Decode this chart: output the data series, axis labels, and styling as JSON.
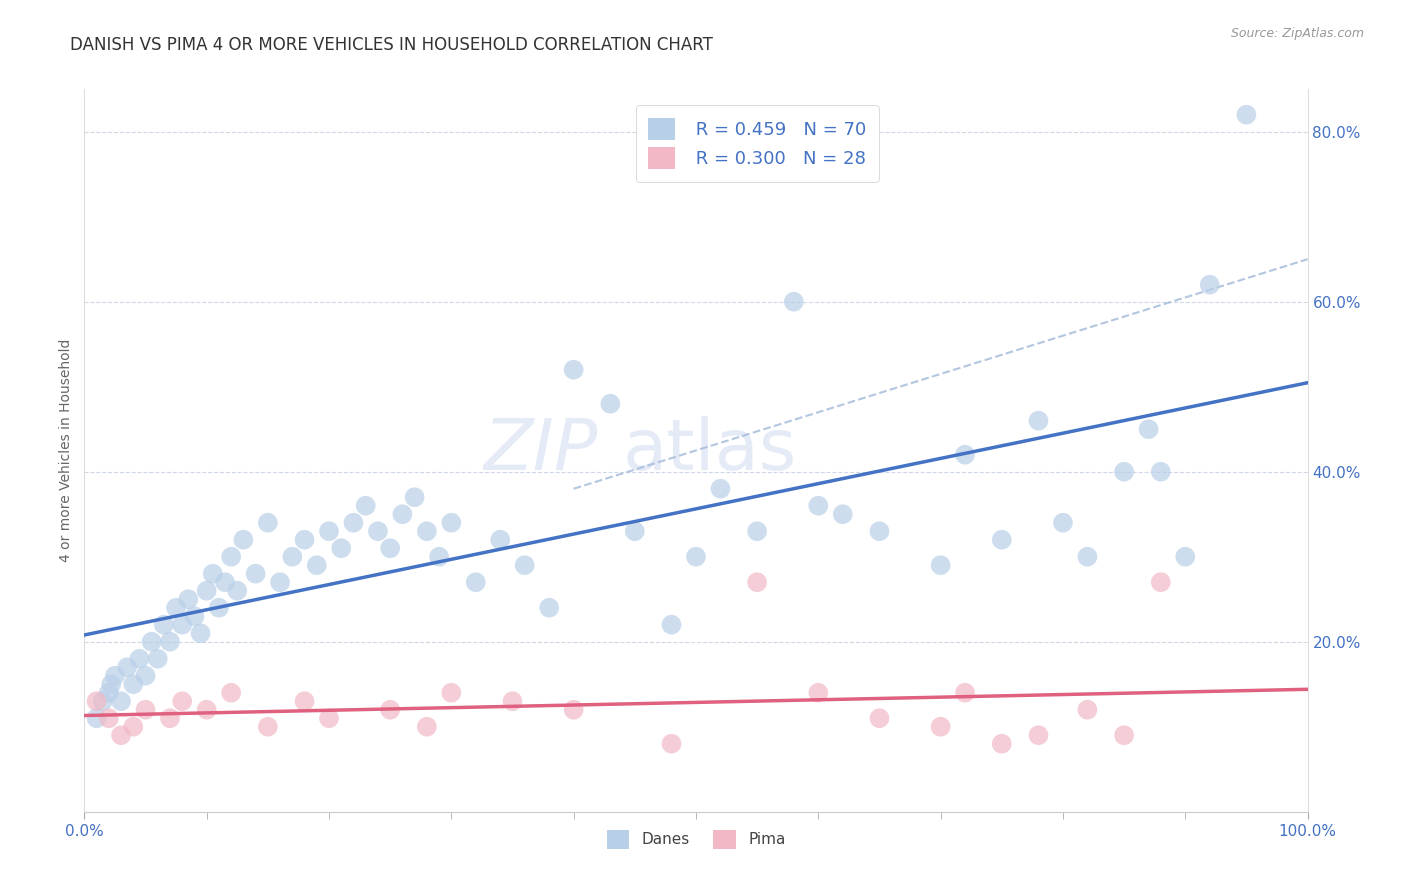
{
  "title": "DANISH VS PIMA 4 OR MORE VEHICLES IN HOUSEHOLD CORRELATION CHART",
  "source": "Source: ZipAtlas.com",
  "ylabel": "4 or more Vehicles in Household",
  "legend_danes": "Danes",
  "legend_pima": "Pima",
  "danes_R": "0.459",
  "danes_N": "70",
  "pima_R": "0.300",
  "pima_N": "28",
  "danes_scatter_color": "#b8cfe8",
  "pima_scatter_color": "#f2b8c6",
  "danes_line_color": "#4472c4",
  "pima_line_color": "#e06080",
  "dashed_line_color": "#a0b8d8",
  "tick_label_color": "#4472c4",
  "background_color": "#ffffff",
  "grid_color": "#d0d8e8",
  "watermark_color": "#ccd8ee",
  "xlim": [
    0,
    100
  ],
  "ylim": [
    0,
    85
  ],
  "yticks": [
    20,
    40,
    60,
    80
  ],
  "ytick_labels": [
    "20.0%",
    "40.0%",
    "60.0%",
    "80.0%"
  ],
  "title_fontsize": 12,
  "axis_label_fontsize": 10,
  "tick_fontsize": 11,
  "danes_x": [
    1.0,
    1.5,
    2.0,
    2.2,
    2.5,
    3.0,
    3.5,
    4.0,
    4.5,
    5.0,
    5.5,
    6.0,
    6.5,
    7.0,
    7.5,
    8.0,
    8.5,
    9.0,
    9.5,
    10.0,
    10.5,
    11.0,
    11.5,
    12.0,
    12.5,
    13.0,
    14.0,
    15.0,
    16.0,
    17.0,
    18.0,
    19.0,
    20.0,
    21.0,
    22.0,
    23.0,
    24.0,
    25.0,
    26.0,
    27.0,
    28.0,
    29.0,
    30.0,
    32.0,
    34.0,
    36.0,
    38.0,
    40.0,
    43.0,
    45.0,
    48.0,
    50.0,
    52.0,
    55.0,
    58.0,
    60.0,
    62.0,
    65.0,
    70.0,
    72.0,
    75.0,
    78.0,
    80.0,
    82.0,
    85.0,
    87.0,
    88.0,
    90.0,
    92.0,
    95.0
  ],
  "danes_y": [
    11.0,
    13.0,
    14.0,
    15.0,
    16.0,
    13.0,
    17.0,
    15.0,
    18.0,
    16.0,
    20.0,
    18.0,
    22.0,
    20.0,
    24.0,
    22.0,
    25.0,
    23.0,
    21.0,
    26.0,
    28.0,
    24.0,
    27.0,
    30.0,
    26.0,
    32.0,
    28.0,
    34.0,
    27.0,
    30.0,
    32.0,
    29.0,
    33.0,
    31.0,
    34.0,
    36.0,
    33.0,
    31.0,
    35.0,
    37.0,
    33.0,
    30.0,
    34.0,
    27.0,
    32.0,
    29.0,
    24.0,
    52.0,
    48.0,
    33.0,
    22.0,
    30.0,
    38.0,
    33.0,
    60.0,
    36.0,
    35.0,
    33.0,
    29.0,
    42.0,
    32.0,
    46.0,
    34.0,
    30.0,
    40.0,
    45.0,
    40.0,
    30.0,
    62.0,
    82.0
  ],
  "pima_x": [
    1.0,
    2.0,
    3.0,
    4.0,
    5.0,
    7.0,
    8.0,
    10.0,
    12.0,
    15.0,
    18.0,
    20.0,
    25.0,
    28.0,
    30.0,
    35.0,
    40.0,
    48.0,
    55.0,
    60.0,
    65.0,
    70.0,
    72.0,
    75.0,
    78.0,
    82.0,
    85.0,
    88.0
  ],
  "pima_y": [
    13.0,
    11.0,
    9.0,
    10.0,
    12.0,
    11.0,
    13.0,
    12.0,
    14.0,
    10.0,
    13.0,
    11.0,
    12.0,
    10.0,
    14.0,
    13.0,
    12.0,
    8.0,
    27.0,
    14.0,
    11.0,
    10.0,
    14.0,
    8.0,
    9.0,
    12.0,
    9.0,
    27.0
  ]
}
